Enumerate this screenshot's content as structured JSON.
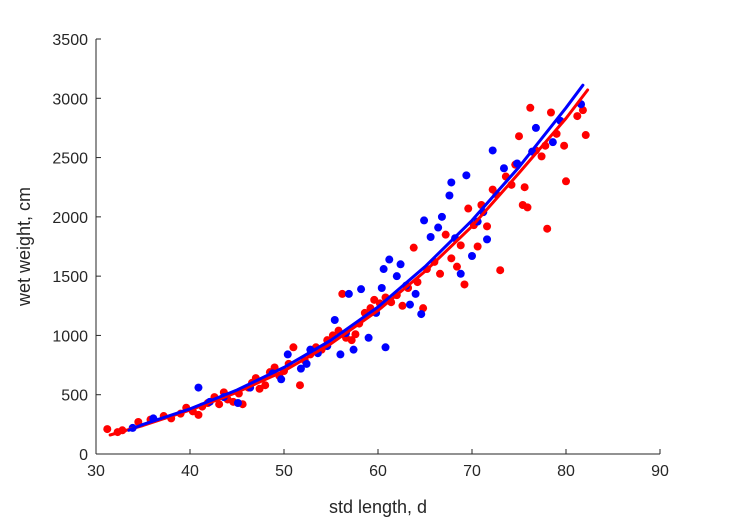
{
  "chart_data": {
    "type": "scatter",
    "title": "",
    "xlabel": "std length, d",
    "ylabel": "wet weight, cm",
    "xlim": [
      30,
      90
    ],
    "ylim": [
      0,
      3500
    ],
    "xticks": [
      "30",
      "40",
      "50",
      "60",
      "70",
      "80",
      "90"
    ],
    "yticks": [
      "0",
      "500",
      "1000",
      "1500",
      "2000",
      "2500",
      "3000",
      "3500"
    ],
    "grid": false,
    "legend": "none",
    "series": [
      {
        "color": "#ff0000",
        "points": [
          [
            31.2,
            210
          ],
          [
            32.3,
            185
          ],
          [
            32.8,
            200
          ],
          [
            34.5,
            270
          ],
          [
            35.8,
            290
          ],
          [
            37.2,
            320
          ],
          [
            38.0,
            300
          ],
          [
            39.0,
            340
          ],
          [
            39.6,
            390
          ],
          [
            40.3,
            360
          ],
          [
            40.9,
            330
          ],
          [
            41.3,
            400
          ],
          [
            41.9,
            430
          ],
          [
            42.6,
            480
          ],
          [
            43.1,
            420
          ],
          [
            43.6,
            520
          ],
          [
            44.0,
            460
          ],
          [
            44.6,
            440
          ],
          [
            45.2,
            510
          ],
          [
            45.6,
            420
          ],
          [
            46.2,
            560
          ],
          [
            46.6,
            600
          ],
          [
            47.0,
            640
          ],
          [
            47.4,
            550
          ],
          [
            48.0,
            580
          ],
          [
            48.5,
            690
          ],
          [
            49.0,
            730
          ],
          [
            49.5,
            660
          ],
          [
            50.0,
            700
          ],
          [
            50.5,
            760
          ],
          [
            51.0,
            900
          ],
          [
            51.7,
            580
          ],
          [
            52.2,
            790
          ],
          [
            52.8,
            840
          ],
          [
            53.4,
            900
          ],
          [
            54.0,
            880
          ],
          [
            54.6,
            960
          ],
          [
            55.2,
            1000
          ],
          [
            55.8,
            1040
          ],
          [
            56.2,
            1350
          ],
          [
            56.6,
            980
          ],
          [
            57.2,
            960
          ],
          [
            57.6,
            1010
          ],
          [
            58.0,
            1100
          ],
          [
            58.6,
            1190
          ],
          [
            59.2,
            1230
          ],
          [
            59.6,
            1300
          ],
          [
            60.2,
            1270
          ],
          [
            60.8,
            1320
          ],
          [
            61.4,
            1280
          ],
          [
            62.0,
            1340
          ],
          [
            62.6,
            1250
          ],
          [
            63.2,
            1400
          ],
          [
            63.8,
            1740
          ],
          [
            64.2,
            1450
          ],
          [
            64.8,
            1230
          ],
          [
            65.2,
            1560
          ],
          [
            66.0,
            1620
          ],
          [
            66.6,
            1520
          ],
          [
            67.2,
            1850
          ],
          [
            67.8,
            1650
          ],
          [
            68.4,
            1580
          ],
          [
            68.8,
            1760
          ],
          [
            69.2,
            1430
          ],
          [
            69.6,
            2070
          ],
          [
            70.2,
            1930
          ],
          [
            70.6,
            1750
          ],
          [
            71.0,
            2100
          ],
          [
            71.6,
            1920
          ],
          [
            72.2,
            2230
          ],
          [
            72.6,
            2190
          ],
          [
            73.0,
            1550
          ],
          [
            73.6,
            2340
          ],
          [
            74.2,
            2270
          ],
          [
            74.6,
            2440
          ],
          [
            75.0,
            2680
          ],
          [
            75.4,
            2100
          ],
          [
            75.6,
            2250
          ],
          [
            75.9,
            2080
          ],
          [
            76.2,
            2920
          ],
          [
            76.8,
            2560
          ],
          [
            77.4,
            2510
          ],
          [
            77.8,
            2600
          ],
          [
            78.0,
            1900
          ],
          [
            78.4,
            2880
          ],
          [
            79.0,
            2700
          ],
          [
            79.8,
            2600
          ],
          [
            80.0,
            2300
          ],
          [
            81.2,
            2850
          ],
          [
            81.8,
            2900
          ],
          [
            82.1,
            2690
          ]
        ]
      },
      {
        "color": "#0000ff",
        "points": [
          [
            33.9,
            220
          ],
          [
            36.1,
            300
          ],
          [
            40.9,
            560
          ],
          [
            42.1,
            440
          ],
          [
            43.6,
            480
          ],
          [
            45.1,
            430
          ],
          [
            46.4,
            560
          ],
          [
            48.8,
            680
          ],
          [
            49.7,
            630
          ],
          [
            50.4,
            840
          ],
          [
            51.8,
            720
          ],
          [
            52.4,
            760
          ],
          [
            52.8,
            880
          ],
          [
            53.6,
            850
          ],
          [
            54.6,
            910
          ],
          [
            55.4,
            1130
          ],
          [
            56.0,
            840
          ],
          [
            56.6,
            1020
          ],
          [
            56.9,
            1350
          ],
          [
            57.4,
            880
          ],
          [
            58.2,
            1390
          ],
          [
            59.0,
            980
          ],
          [
            59.8,
            1190
          ],
          [
            60.4,
            1400
          ],
          [
            60.6,
            1560
          ],
          [
            60.8,
            900
          ],
          [
            61.2,
            1640
          ],
          [
            62.0,
            1500
          ],
          [
            62.4,
            1600
          ],
          [
            63.0,
            1420
          ],
          [
            63.4,
            1260
          ],
          [
            64.0,
            1350
          ],
          [
            64.6,
            1180
          ],
          [
            64.9,
            1970
          ],
          [
            65.6,
            1830
          ],
          [
            66.4,
            1910
          ],
          [
            66.8,
            2000
          ],
          [
            67.6,
            2180
          ],
          [
            67.8,
            2290
          ],
          [
            68.2,
            1820
          ],
          [
            68.8,
            1520
          ],
          [
            69.4,
            2350
          ],
          [
            70.0,
            1670
          ],
          [
            70.6,
            1960
          ],
          [
            71.2,
            2040
          ],
          [
            71.6,
            1810
          ],
          [
            72.2,
            2560
          ],
          [
            73.4,
            2410
          ],
          [
            74.8,
            2450
          ],
          [
            76.4,
            2550
          ],
          [
            76.8,
            2750
          ],
          [
            78.6,
            2630
          ],
          [
            79.4,
            2810
          ],
          [
            81.6,
            2950
          ]
        ]
      }
    ],
    "fit_lines": [
      {
        "color": "#ff0000",
        "points": [
          [
            31.5,
            160
          ],
          [
            35,
            240
          ],
          [
            40,
            370
          ],
          [
            45,
            520
          ],
          [
            50,
            700
          ],
          [
            55,
            930
          ],
          [
            60,
            1210
          ],
          [
            65,
            1540
          ],
          [
            70,
            1920
          ],
          [
            75,
            2370
          ],
          [
            80,
            2830
          ],
          [
            82.3,
            3070
          ]
        ]
      },
      {
        "color": "#0000ff",
        "points": [
          [
            33.5,
            200
          ],
          [
            35,
            250
          ],
          [
            40,
            380
          ],
          [
            45,
            540
          ],
          [
            50,
            730
          ],
          [
            55,
            960
          ],
          [
            60,
            1240
          ],
          [
            65,
            1580
          ],
          [
            70,
            1970
          ],
          [
            75,
            2420
          ],
          [
            80,
            2920
          ],
          [
            81.8,
            3110
          ]
        ]
      }
    ]
  }
}
